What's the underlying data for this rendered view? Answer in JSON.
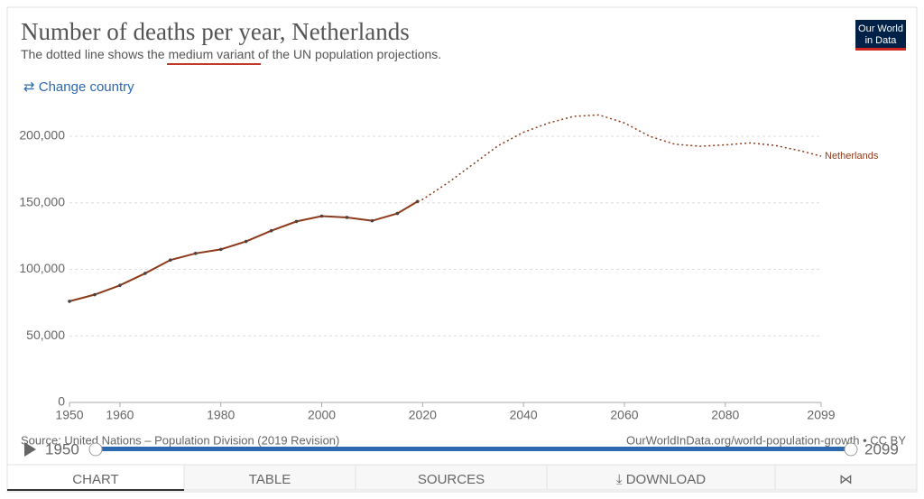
{
  "chart_data": {
    "type": "line",
    "title": "Number of deaths per year, Netherlands",
    "subtitle": [
      "The dotted line shows the ",
      "medium variant",
      " of the UN population projections."
    ],
    "x": [
      1950,
      1955,
      1960,
      1965,
      1970,
      1975,
      1980,
      1985,
      1990,
      1995,
      2000,
      2005,
      2010,
      2015,
      2019,
      2020,
      2025,
      2030,
      2035,
      2040,
      2045,
      2050,
      2055,
      2060,
      2065,
      2070,
      2075,
      2080,
      2085,
      2090,
      2095,
      2099
    ],
    "series": [
      {
        "name": "Netherlands",
        "color": "#8c3a1a",
        "values": [
          76000,
          81000,
          88000,
          97000,
          107000,
          112000,
          115000,
          121000,
          129000,
          136000,
          140000,
          139000,
          136500,
          142000,
          151000,
          null,
          null,
          null,
          null,
          null,
          null,
          null,
          null,
          null,
          null,
          null,
          null,
          null,
          null,
          null,
          null,
          null
        ],
        "projection_values": [
          null,
          null,
          null,
          null,
          null,
          null,
          null,
          null,
          null,
          null,
          null,
          null,
          null,
          null,
          151000,
          152500,
          165000,
          179000,
          193000,
          203000,
          210000,
          215000,
          216000,
          210000,
          200000,
          194000,
          192500,
          193500,
          195000,
          193000,
          189000,
          185000
        ]
      }
    ],
    "xlim": [
      1950,
      2099
    ],
    "xticks": [
      1950,
      1960,
      1980,
      2000,
      2020,
      2040,
      2060,
      2080,
      2099
    ],
    "ylim": [
      0,
      220000
    ],
    "yticks": [
      0,
      {
        "value": 50000,
        "label": "50,000"
      },
      {
        "value": 100000,
        "label": "100,000"
      },
      {
        "value": 150000,
        "label": "150,000"
      },
      {
        "value": 200000,
        "label": "200,000"
      }
    ],
    "grid": true,
    "source": "Source: United Nations – Population Division (2019 Revision)",
    "url": "OurWorldInData.org/world-population-growth • CC BY"
  },
  "logo": [
    "Our World",
    "in Data"
  ],
  "change_country": "⇄ Change country",
  "timeline": {
    "start": 1950,
    "end": 2099
  },
  "tabs": [
    "CHART",
    "TABLE",
    "SOURCES",
    "⤓ DOWNLOAD",
    "⋈"
  ]
}
